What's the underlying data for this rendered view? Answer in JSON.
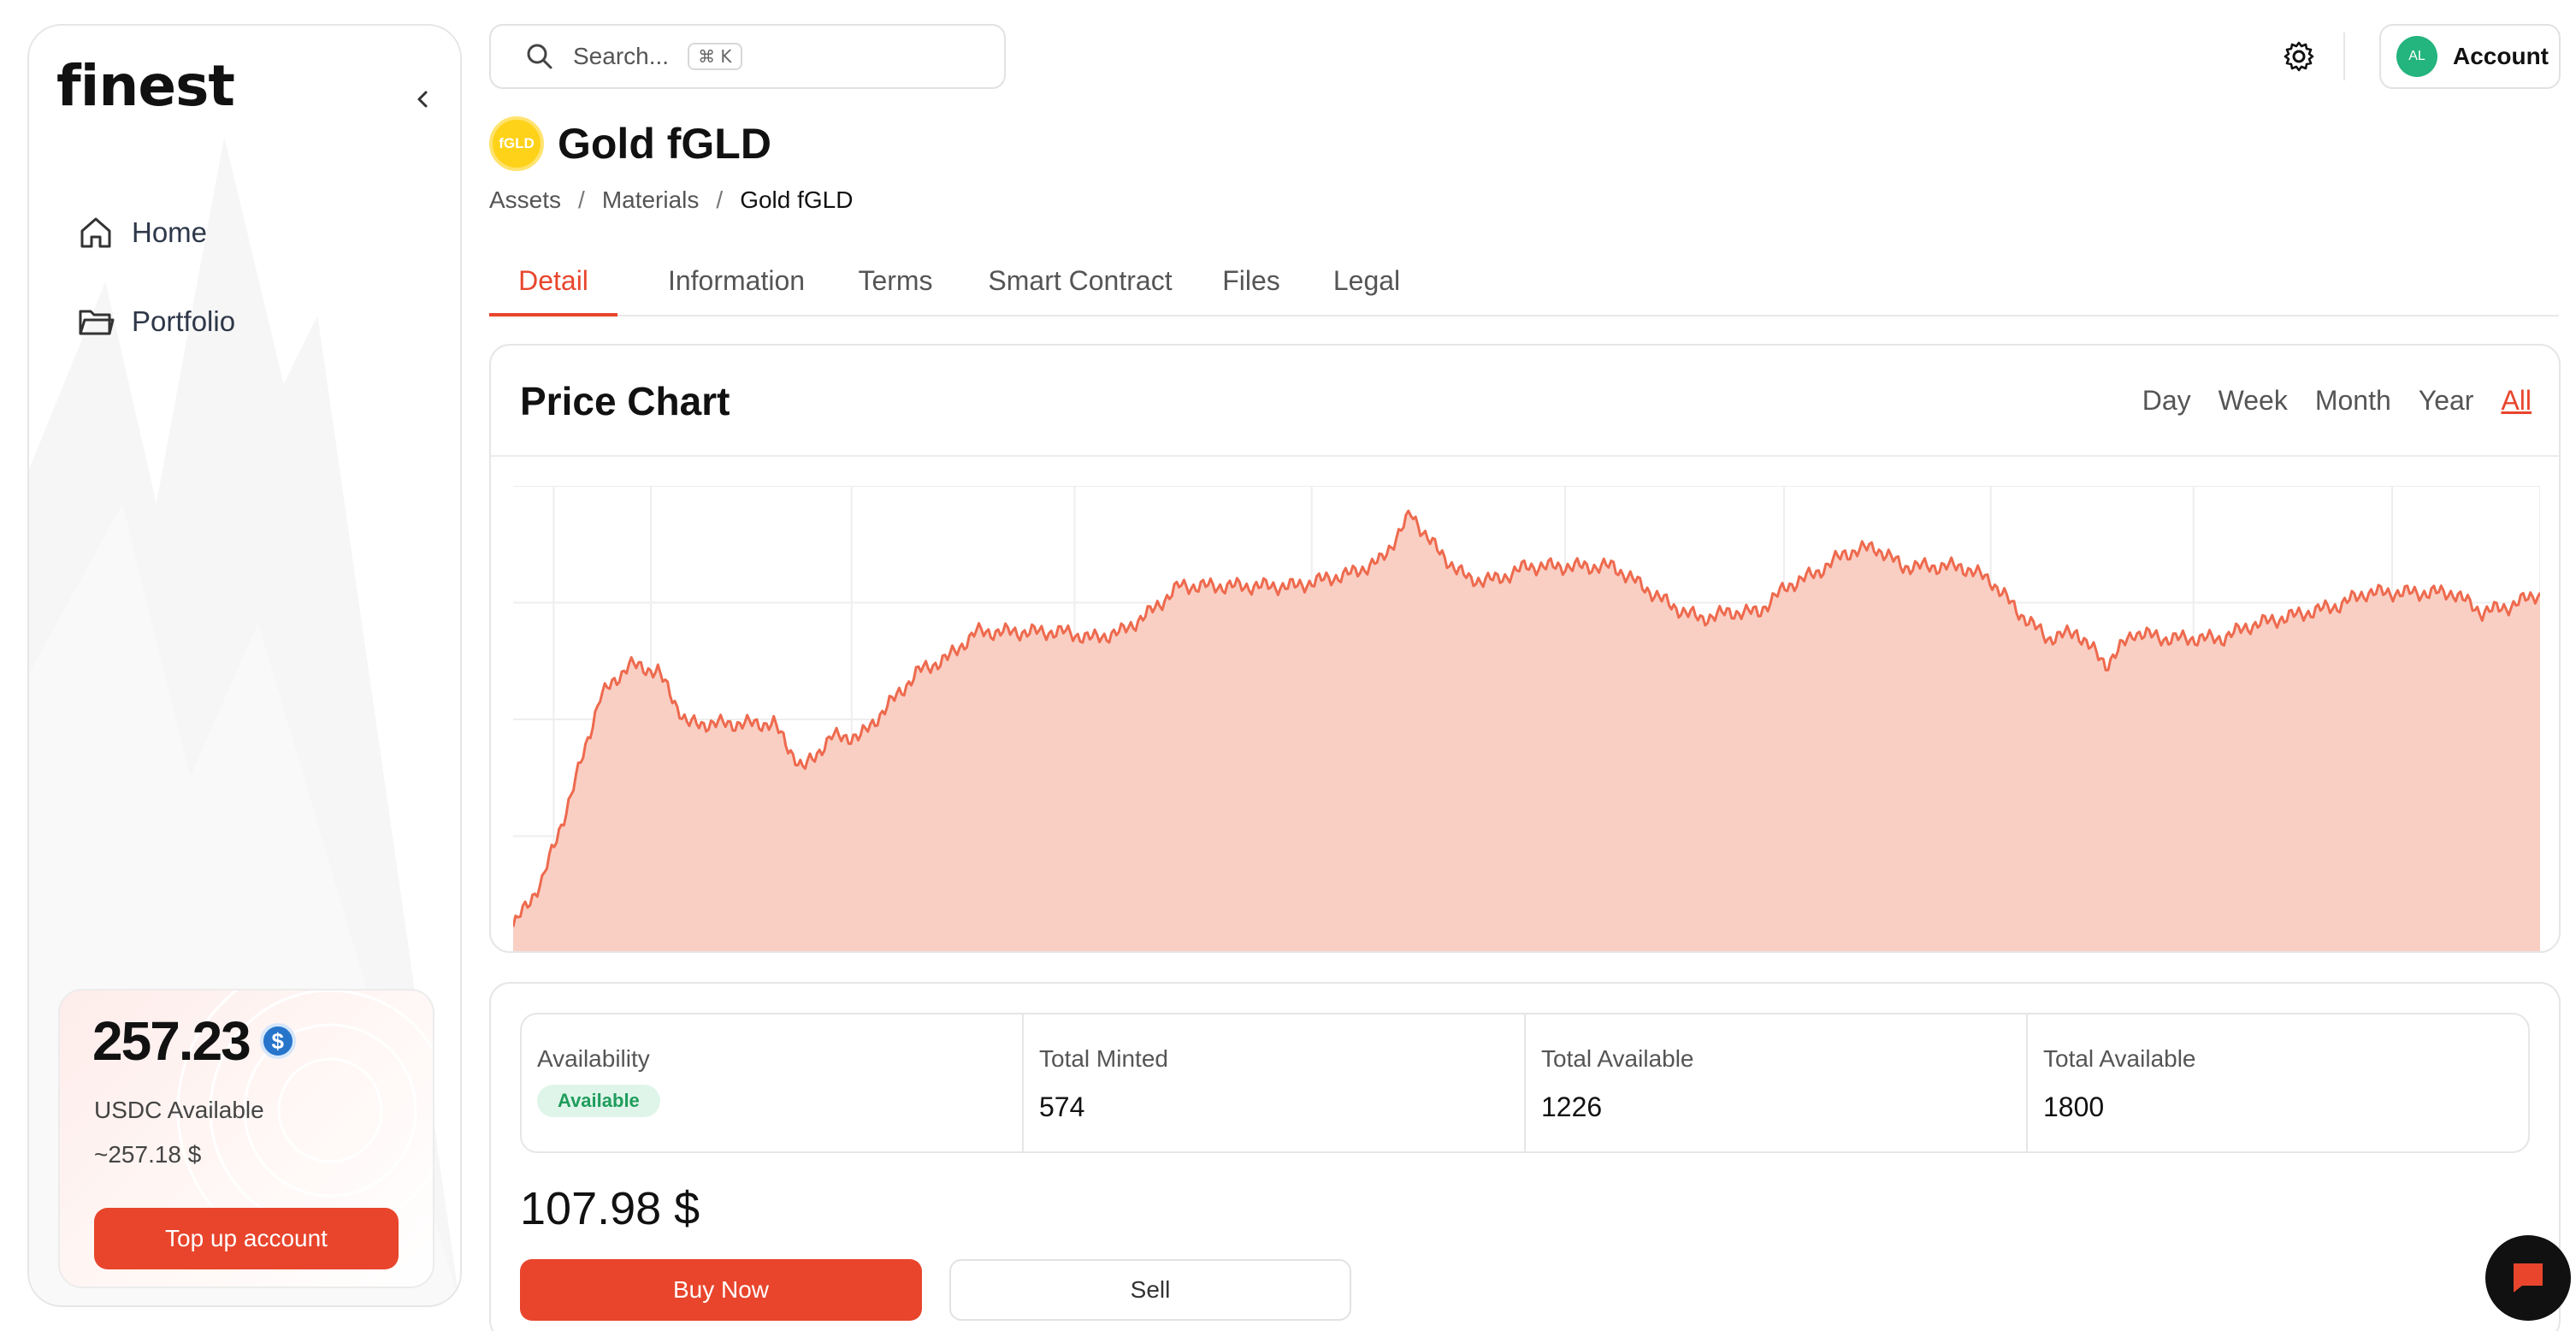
{
  "brand": {
    "logo_text": "finest"
  },
  "sidebar": {
    "items": [
      {
        "label": "Home",
        "icon": "home-icon"
      },
      {
        "label": "Portfolio",
        "icon": "folder-icon"
      }
    ],
    "balance": {
      "amount": "257.23",
      "currency_icon": "usdc-icon",
      "label": "USDC Available",
      "approx": "~257.18 $",
      "topup_label": "Top up account"
    }
  },
  "header": {
    "search_placeholder": "Search...",
    "search_shortcut": "⌘ K",
    "avatar_initials": "AL",
    "account_label": "Account"
  },
  "asset": {
    "logo_text": "fGLD",
    "title": "Gold fGLD",
    "breadcrumb": [
      "Assets",
      "Materials",
      "Gold fGLD"
    ]
  },
  "tabs": [
    "Detail",
    "Information",
    "Terms",
    "Smart Contract",
    "Files",
    "Legal"
  ],
  "active_tab": "Detail",
  "chart": {
    "title": "Price Chart",
    "ranges": [
      "Day",
      "Week",
      "Month",
      "Year",
      "All"
    ],
    "active_range": "All",
    "line_color": "#ee6a4e",
    "fill_color": "#f9cfc4"
  },
  "chart_data": {
    "type": "area",
    "title": "Price Chart",
    "xlabel": "",
    "ylabel": "",
    "grid": true,
    "x": [
      0,
      1,
      2,
      3,
      4,
      5,
      6,
      7,
      8,
      9,
      10,
      11,
      12,
      13,
      14,
      15,
      16,
      17,
      18,
      19,
      20,
      21,
      22,
      23,
      24,
      25,
      26,
      27,
      28,
      29,
      30,
      31,
      32,
      33,
      34,
      35,
      36,
      37,
      38,
      39,
      40,
      41,
      42,
      43,
      44,
      45,
      46,
      47,
      48,
      49,
      50,
      51,
      52,
      53,
      54,
      55,
      56,
      57,
      58,
      59,
      60,
      61,
      62,
      63,
      64,
      65,
      66,
      67,
      68,
      69,
      70
    ],
    "values": [
      8,
      22,
      48,
      78,
      88,
      86,
      70,
      70,
      70,
      70,
      56,
      66,
      66,
      76,
      86,
      90,
      98,
      98,
      98,
      98,
      96,
      98,
      104,
      112,
      112,
      112,
      112,
      112,
      114,
      116,
      120,
      134,
      122,
      114,
      114,
      118,
      118,
      118,
      118,
      112,
      106,
      102,
      104,
      104,
      112,
      116,
      122,
      124,
      118,
      118,
      118,
      114,
      104,
      96,
      98,
      88,
      98,
      96,
      96,
      96,
      100,
      102,
      104,
      106,
      110,
      110,
      110,
      110,
      104,
      106,
      110
    ],
    "series": [
      {
        "values_ref": "values"
      }
    ],
    "ylim": [
      0,
      140
    ]
  },
  "stats": [
    {
      "label": "Availability",
      "badge": "Available"
    },
    {
      "label": "Total Minted",
      "value": "574"
    },
    {
      "label": "Total Available",
      "value": "1226"
    },
    {
      "label": "Total Available",
      "value": "1800"
    }
  ],
  "price": "107.98 $",
  "actions": {
    "buy_label": "Buy Now",
    "sell_label": "Sell"
  },
  "colors": {
    "accent": "#e8452c",
    "success": "#1f9d5c",
    "usdc": "#2775ca",
    "gold": "#ffd21a",
    "avatar": "#24b47e"
  }
}
